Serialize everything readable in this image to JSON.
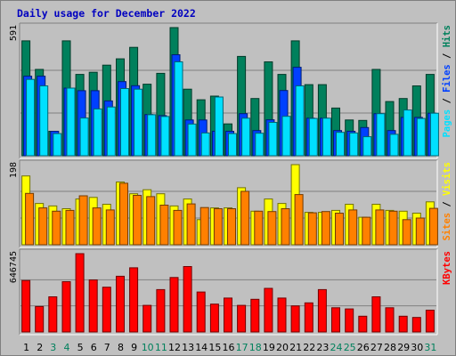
{
  "colors": {
    "hits": "#00805c",
    "files": "#0040ff",
    "pages": "#00e0ff",
    "visits": "#ffff00",
    "sites": "#ff8000",
    "kbytes": "#ff0000",
    "weekend": "#00805c",
    "weekday": "#000000",
    "title": "#0000c0"
  },
  "chart_data": {
    "type": "bar",
    "title": "Daily usage for December 2022",
    "categories": [
      "1",
      "2",
      "3",
      "4",
      "5",
      "6",
      "7",
      "8",
      "9",
      "10",
      "11",
      "12",
      "13",
      "14",
      "15",
      "16",
      "17",
      "18",
      "19",
      "20",
      "21",
      "22",
      "23",
      "24",
      "25",
      "26",
      "27",
      "28",
      "29",
      "30",
      "31"
    ],
    "weekend_days": [
      "3",
      "4",
      "10",
      "11",
      "17",
      "18",
      "24",
      "25",
      "31"
    ],
    "panels": [
      {
        "id": "hits-files-pages",
        "ytick": "591",
        "ymax": 591,
        "legend": [
          "Pages",
          "/",
          "Files",
          "/",
          "Hits"
        ],
        "series": [
          {
            "name": "Hits",
            "values": [
              530,
              398,
              113,
              530,
              375,
              385,
              418,
              447,
              500,
              330,
              380,
              591,
              307,
              258,
              275,
              147,
              458,
              264,
              433,
              375,
              530,
              328,
              328,
              220,
              165,
              163,
              398,
              250,
              264,
              322,
              375
            ]
          },
          {
            "name": "Files",
            "values": [
              367,
              367,
              113,
              312,
              300,
              300,
              253,
              342,
              323,
              190,
              185,
              466,
              165,
              165,
              113,
              113,
              194,
              116,
              166,
              301,
              408,
              173,
              173,
              116,
              113,
              130,
              194,
              116,
              177,
              177,
              196
            ]
          },
          {
            "name": "Pages",
            "values": [
              352,
              322,
              102,
              312,
              174,
              216,
              225,
              310,
              307,
              189,
              181,
              433,
              146,
              105,
              271,
              102,
              173,
              104,
              154,
              182,
              322,
              172,
              173,
              108,
              105,
              88,
              194,
              99,
              211,
              172,
              196
            ]
          }
        ]
      },
      {
        "id": "visits-sites",
        "ytick": "198",
        "ymax": 198,
        "legend": [
          "Sites",
          "/",
          "Visits"
        ],
        "series": [
          {
            "name": "Visits",
            "values": [
              170,
              102,
              96,
              89,
              113,
              117,
              100,
              155,
              126,
              136,
              126,
              96,
              113,
              62,
              91,
              91,
              141,
              83,
              113,
              102,
              198,
              80,
              80,
              85,
              100,
              68,
              100,
              85,
              83,
              78,
              106
            ]
          },
          {
            "name": "Sites",
            "values": [
              127,
              91,
              83,
              85,
              121,
              91,
              86,
              152,
              122,
              119,
              98,
              85,
              101,
              92,
              89,
              89,
              132,
              83,
              82,
              89,
              124,
              79,
              82,
              78,
              86,
              68,
              86,
              83,
              62,
              66,
              90
            ]
          }
        ]
      },
      {
        "id": "kbytes",
        "ytick": "646745",
        "ymax": 646745,
        "legend": [
          "KBytes"
        ],
        "series": [
          {
            "name": "KBytes",
            "values": [
              425000,
              210000,
              290000,
              415000,
              646745,
              430000,
              370000,
              460000,
              530000,
              220000,
              350000,
              450000,
              540000,
              330000,
              230000,
              280000,
              220000,
              270000,
              360000,
              280000,
              215000,
              240000,
              350000,
              200000,
              190000,
              130000,
              290000,
              200000,
              130000,
              120000,
              180000
            ]
          }
        ]
      }
    ]
  }
}
